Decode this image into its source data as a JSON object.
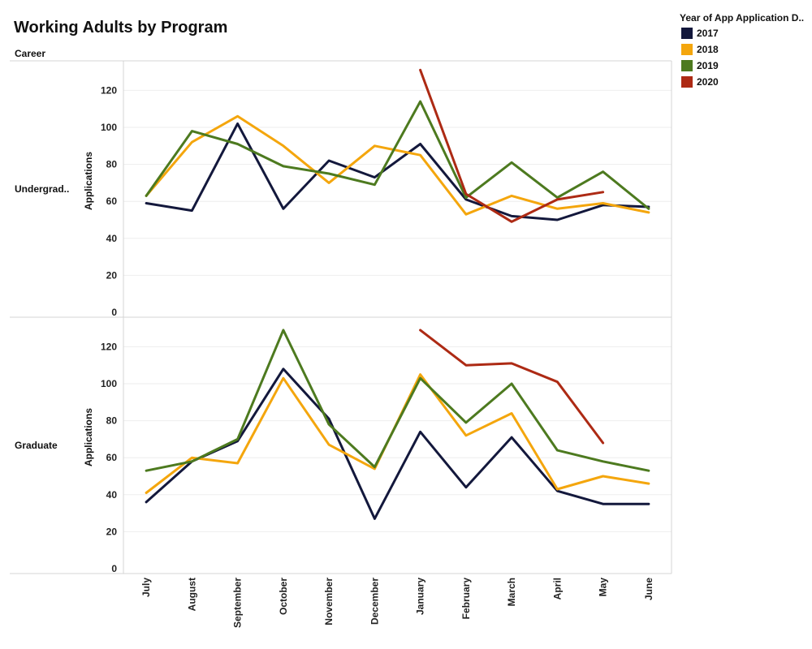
{
  "chart_data": {
    "type": "line",
    "title": "Working Adults by Program",
    "row_header": "Career",
    "ylabel": "Applications",
    "ylim": [
      0,
      135
    ],
    "yticks": [
      0,
      20,
      40,
      60,
      80,
      100,
      120
    ],
    "x": [
      "July",
      "August",
      "September",
      "October",
      "November",
      "December",
      "January",
      "February",
      "March",
      "April",
      "May",
      "June"
    ],
    "legend": {
      "title": "Year of App Application D..",
      "placement": "top-right",
      "items": [
        {
          "label": "2017",
          "color": "#13183c"
        },
        {
          "label": "2018",
          "color": "#f4a60d"
        },
        {
          "label": "2019",
          "color": "#4d7a1f"
        },
        {
          "label": "2020",
          "color": "#ad2a14"
        }
      ]
    },
    "panels": [
      {
        "label": "Undergrad..",
        "series": [
          {
            "name": "2017",
            "values": [
              59,
              55,
              102,
              56,
              82,
              73,
              91,
              61,
              52,
              50,
              58,
              57
            ]
          },
          {
            "name": "2018",
            "values": [
              63,
              92,
              106,
              90,
              70,
              90,
              85,
              53,
              63,
              56,
              59,
              54
            ]
          },
          {
            "name": "2019",
            "values": [
              63,
              98,
              91,
              79,
              75,
              69,
              114,
              62,
              81,
              62,
              76,
              56
            ]
          },
          {
            "name": "2020",
            "values": [
              null,
              null,
              null,
              null,
              null,
              null,
              131,
              64,
              49,
              61,
              65,
              null
            ]
          }
        ]
      },
      {
        "label": "Graduate",
        "series": [
          {
            "name": "2017",
            "values": [
              36,
              58,
              69,
              108,
              81,
              27,
              74,
              44,
              71,
              42,
              35,
              35
            ]
          },
          {
            "name": "2018",
            "values": [
              41,
              60,
              57,
              103,
              67,
              54,
              105,
              72,
              84,
              43,
              50,
              46
            ]
          },
          {
            "name": "2019",
            "values": [
              53,
              58,
              70,
              129,
              78,
              55,
              103,
              79,
              100,
              64,
              58,
              53
            ]
          },
          {
            "name": "2020",
            "values": [
              null,
              null,
              null,
              null,
              null,
              null,
              129,
              110,
              111,
              101,
              68,
              null
            ]
          }
        ]
      }
    ]
  }
}
